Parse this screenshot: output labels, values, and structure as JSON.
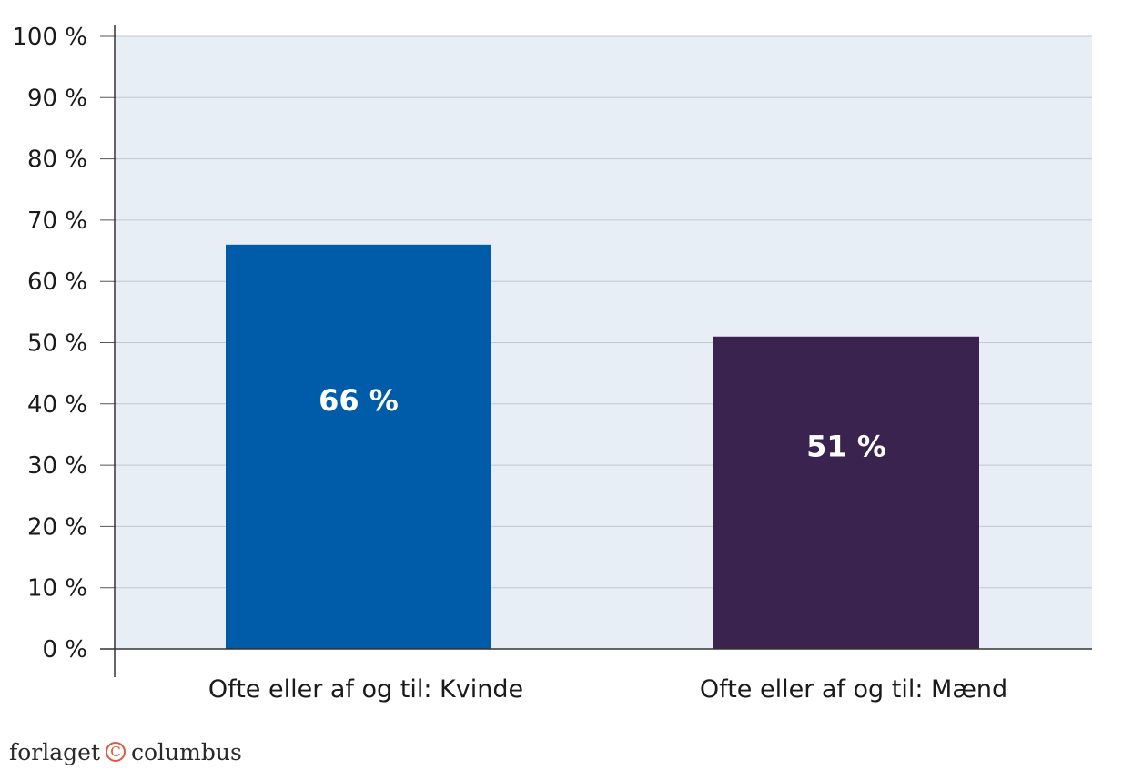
{
  "chart_data": {
    "type": "bar",
    "title": "",
    "xlabel": "",
    "ylabel": "",
    "categories": [
      "Ofte eller af og til: Kvinde",
      "Ofte eller af og til: Mænd"
    ],
    "values": [
      66,
      51
    ],
    "value_labels": [
      "66 %",
      "51 %"
    ],
    "bar_colors": [
      "#005ca9",
      "#3b2350"
    ],
    "ylim": [
      0,
      100
    ],
    "yticks": [
      0,
      10,
      20,
      30,
      40,
      50,
      60,
      70,
      80,
      90,
      100
    ],
    "ytick_labels": [
      "0 %",
      "10 %",
      "20 %",
      "30 %",
      "40 %",
      "50 %",
      "60 %",
      "70 %",
      "80 %",
      "90 %",
      "100 %"
    ],
    "grid": true,
    "plot_background": "#e8eef5",
    "legend": "none"
  },
  "footer": {
    "brand_left": "forlaget",
    "brand_mark": "C",
    "brand_right": "columbus",
    "brand_accent": "#e0583a"
  }
}
